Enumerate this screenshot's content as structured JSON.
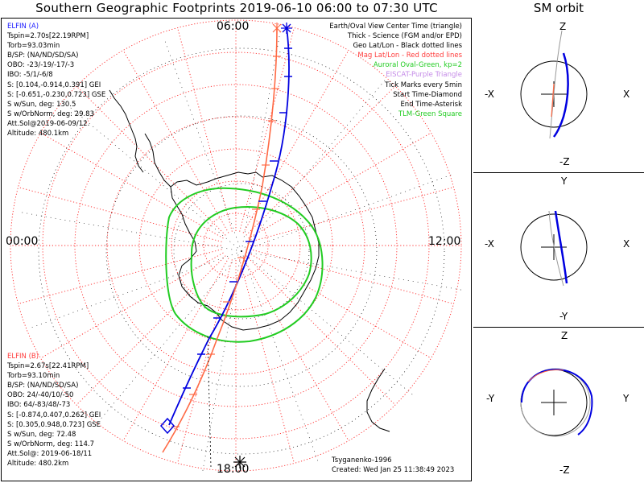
{
  "title": "Southern Geographic Footprints 2019-06-10 06:00 to 07:30 UTC",
  "sm_title": "SM orbit",
  "hours": {
    "top": "06:00",
    "left": "00:00",
    "right": "12:00",
    "bottom": "18:00"
  },
  "elfin_a": {
    "lines": [
      "ELFIN (A)",
      "Tspin=2.70s[22.19RPM]",
      "Torb=93.03min",
      "B/SP: (NA/ND/SD/SA)",
      "OBO: -23/-19/-17/-3",
      "IBO: -5/1/-6/8",
      "S: [0.104,-0.914,0.391] GEI",
      "S: [-0.651,-0.230,0.723] GSE",
      "S w/Sun, deg: 130.5",
      "S w/OrbNorm, deg: 29.83",
      "Att.Sol@2019-06-09/12.",
      "Altitude: 480.1km"
    ]
  },
  "elfin_b": {
    "lines": [
      "ELFIN (B)",
      "Tspin=2.67s[22.41RPM]",
      "Torb=93.10min",
      "B/SP: (NA/ND/SD/SA)",
      "OBO: 24/-40/10/-50",
      "IBO: 64/-83/48/-73",
      "S: [-0.874,0.407,0.262] GEI",
      "S: [0.305,0.948,0.723] GSE",
      "S w/Sun, deg: 72.48",
      "S w/OrbNorm, deg: 114.7",
      "Att.Sol@: 2019-06-18/11",
      "Altitude: 480.2km"
    ]
  },
  "legend": [
    {
      "text": "Earth/Oval View Center Time (triangle)",
      "color": "#000000"
    },
    {
      "text": "Thick - Science (FGM and/or EPD)",
      "color": "#000000"
    },
    {
      "text": "Geo Lat/Lon - Black dotted lines",
      "color": "#000000"
    },
    {
      "text": "Mag Lat/Lon - Red dotted lines",
      "color": "#ff3b3b"
    },
    {
      "text": "Auroral Oval-Green, kp=2",
      "color": "#22cc22"
    },
    {
      "text": "EISCAT-Purple Triangle",
      "color": "#c58be8"
    },
    {
      "text": "Tick Marks every 5min",
      "color": "#000000"
    },
    {
      "text": "Start Time-Diamond",
      "color": "#000000"
    },
    {
      "text": "End Time-Asterisk",
      "color": "#000000"
    },
    {
      "text": "TLM-Green Square",
      "color": "#22cc22"
    }
  ],
  "credits": {
    "line1": "Tsyganenko-1996",
    "line2": "Created: Wed Jan 25 11:38:49 2023"
  },
  "sm_panels": [
    {
      "top": "Z",
      "bottom": "-Z",
      "left": "-X",
      "right": "X"
    },
    {
      "top": "Y",
      "bottom": "-Y",
      "left": "-X",
      "right": "X"
    },
    {
      "top": "Z",
      "bottom": "-Z",
      "left": "-Y",
      "right": "Y"
    }
  ],
  "colors": {
    "elfin_a": "#0000e0",
    "elfin_b": "#ff6a45",
    "oval": "#22cc22",
    "mag_grid": "#ff2a2a",
    "geo_grid": "#000000"
  }
}
